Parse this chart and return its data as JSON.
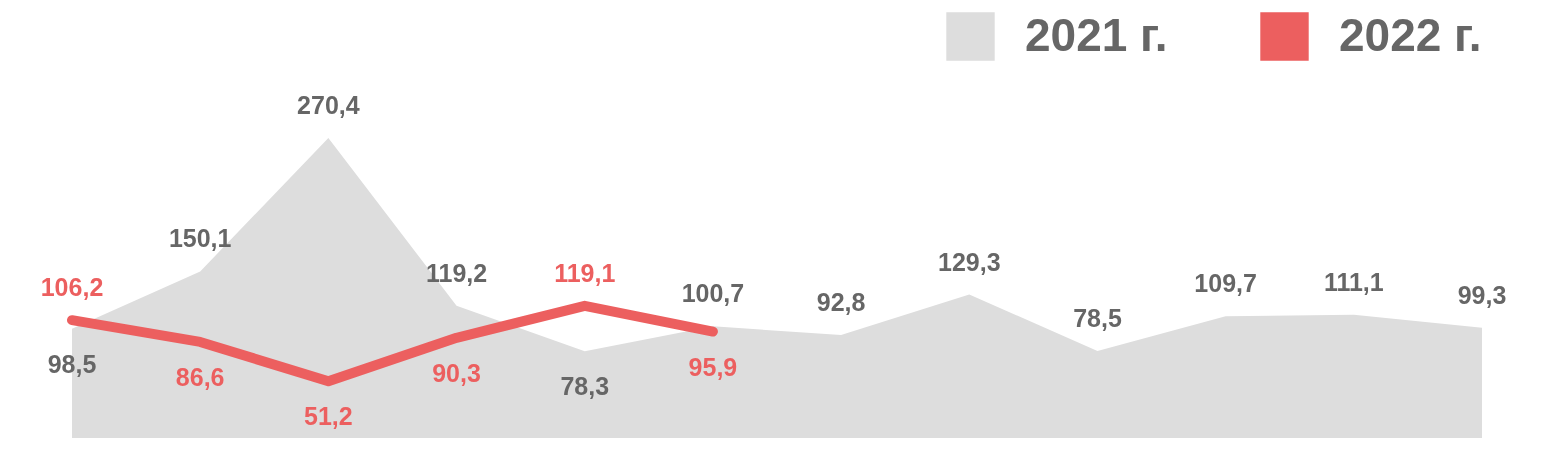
{
  "chart_data": {
    "type": "area",
    "categories": [
      null,
      null,
      null,
      null,
      null,
      null,
      null,
      null,
      null,
      null,
      null,
      null
    ],
    "legend": "top right",
    "series": [
      {
        "name": "2021 г.",
        "color": "#dddddd",
        "values": [
          98.5,
          150.1,
          270.4,
          119.2,
          78.3,
          100.7,
          92.8,
          129.3,
          78.5,
          109.7,
          111.1,
          99.3
        ],
        "value_labels": [
          "98,5",
          "150,1",
          "270,4",
          "119,2",
          "78,3",
          "100,7",
          "92,8",
          "129,3",
          "78,5",
          "109,7",
          "111,1",
          "99,3"
        ]
      },
      {
        "name": "2022 г.",
        "type": "line",
        "color": "#ec5f5f",
        "values": [
          106.2,
          86.6,
          51.2,
          90.3,
          119.1,
          95.9,
          null,
          null,
          null,
          null,
          null,
          null
        ],
        "value_labels": [
          "106,2",
          "86,6",
          "51,2",
          "90,3",
          "119,1",
          "95,9",
          null,
          null,
          null,
          null,
          null,
          null
        ]
      }
    ]
  }
}
